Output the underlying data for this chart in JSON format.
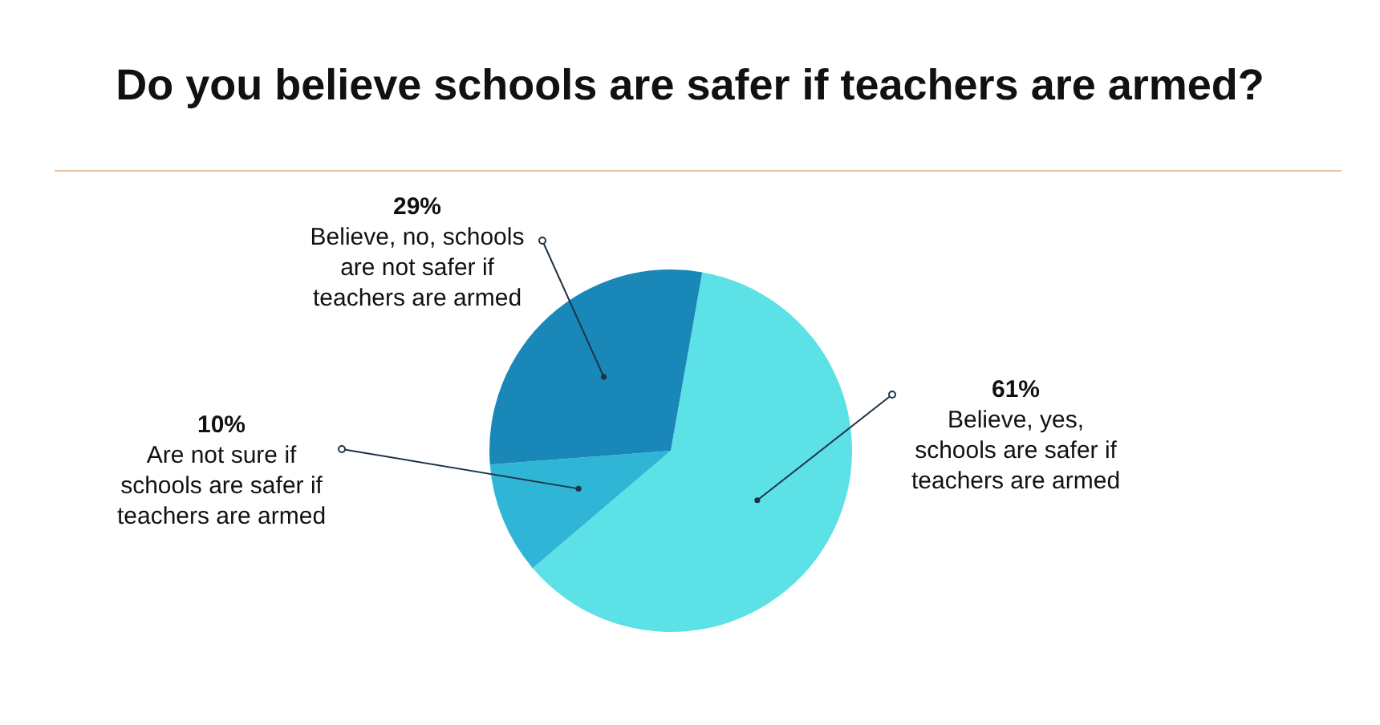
{
  "chart_data": {
    "type": "pie",
    "title": "Do you believe schools are safer if teachers are armed?",
    "categories": [
      "Believe, yes, schools are safer if teachers are armed",
      "Are not sure if schools are safer if teachers are armed",
      "Believe, no, schools are not safer if teachers are armed"
    ],
    "values": [
      61,
      10,
      29
    ],
    "colors": [
      "#5ce1e6",
      "#2fb5d5",
      "#1a87b9"
    ],
    "value_labels": [
      "61%",
      "10%",
      "29%"
    ],
    "legend": false
  }
}
